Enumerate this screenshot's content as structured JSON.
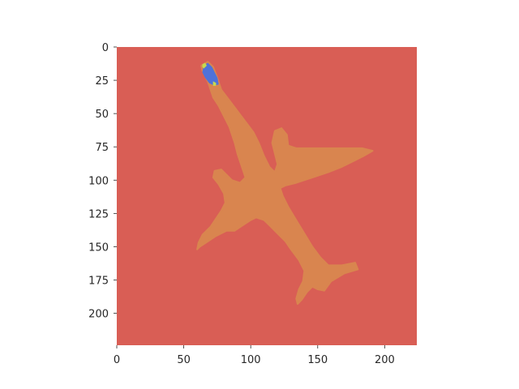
{
  "chart_data": {
    "type": "heatmap",
    "description_kind": "segmentation-mask",
    "image_size": [
      224,
      224
    ],
    "xlim": [
      0,
      224
    ],
    "ylim": [
      224,
      0
    ],
    "grid": false,
    "xticks": [
      0,
      50,
      100,
      150,
      200
    ],
    "yticks": [
      0,
      25,
      50,
      75,
      100,
      125,
      150,
      175,
      200
    ],
    "xtick_labels": [
      "0",
      "50",
      "100",
      "150",
      "200"
    ],
    "ytick_labels": [
      "0",
      "25",
      "50",
      "75",
      "100",
      "125",
      "150",
      "175",
      "200"
    ],
    "classes": [
      {
        "class": "background",
        "color": "#d95e55"
      },
      {
        "class": "airplane",
        "color": "#d9854f"
      },
      {
        "class": "nose-region",
        "color": "#4f72d9"
      },
      {
        "class": "edge",
        "color": "#c5d94f"
      }
    ],
    "regions": [
      {
        "class": "airplane",
        "points": [
          [
            63,
            14
          ],
          [
            68,
            11
          ],
          [
            72,
            15
          ],
          [
            75,
            23
          ],
          [
            78,
            32
          ],
          [
            84,
            40
          ],
          [
            90,
            48
          ],
          [
            96,
            56
          ],
          [
            102,
            64
          ],
          [
            106,
            72
          ],
          [
            110,
            82
          ],
          [
            114,
            90
          ],
          [
            118,
            94
          ],
          [
            120,
            88
          ],
          [
            118,
            80
          ],
          [
            116,
            72
          ],
          [
            118,
            63
          ],
          [
            123,
            61
          ],
          [
            127,
            66
          ],
          [
            128,
            74
          ],
          [
            134,
            76
          ],
          [
            150,
            76
          ],
          [
            170,
            76
          ],
          [
            183,
            76
          ],
          [
            191,
            78
          ],
          [
            184,
            82
          ],
          [
            176,
            86
          ],
          [
            168,
            90
          ],
          [
            158,
            94
          ],
          [
            146,
            98
          ],
          [
            134,
            102
          ],
          [
            126,
            104
          ],
          [
            122,
            106
          ],
          [
            124,
            112
          ],
          [
            128,
            120
          ],
          [
            134,
            130
          ],
          [
            140,
            140
          ],
          [
            146,
            150
          ],
          [
            152,
            158
          ],
          [
            158,
            164
          ],
          [
            168,
            164
          ],
          [
            178,
            162
          ],
          [
            180,
            167
          ],
          [
            170,
            170
          ],
          [
            160,
            176
          ],
          [
            155,
            183
          ],
          [
            150,
            182
          ],
          [
            146,
            180
          ],
          [
            142,
            184
          ],
          [
            138,
            190
          ],
          [
            135,
            193
          ],
          [
            134,
            189
          ],
          [
            136,
            182
          ],
          [
            139,
            176
          ],
          [
            140,
            168
          ],
          [
            136,
            160
          ],
          [
            130,
            152
          ],
          [
            126,
            146
          ],
          [
            120,
            140
          ],
          [
            114,
            134
          ],
          [
            110,
            130
          ],
          [
            104,
            128
          ],
          [
            100,
            130
          ],
          [
            94,
            134
          ],
          [
            88,
            138
          ],
          [
            82,
            138
          ],
          [
            74,
            142
          ],
          [
            68,
            146
          ],
          [
            62,
            150
          ],
          [
            60,
            152
          ],
          [
            61,
            147
          ],
          [
            64,
            141
          ],
          [
            70,
            135
          ],
          [
            74,
            129
          ],
          [
            78,
            123
          ],
          [
            81,
            117
          ],
          [
            80,
            110
          ],
          [
            76,
            103
          ],
          [
            72,
            98
          ],
          [
            73,
            93
          ],
          [
            78,
            92
          ],
          [
            82,
            96
          ],
          [
            86,
            100
          ],
          [
            92,
            102
          ],
          [
            96,
            98
          ],
          [
            94,
            92
          ],
          [
            92,
            86
          ],
          [
            90,
            80
          ],
          [
            88,
            72
          ],
          [
            86,
            66
          ],
          [
            84,
            60
          ],
          [
            80,
            52
          ],
          [
            76,
            44
          ],
          [
            72,
            38
          ],
          [
            70,
            32
          ],
          [
            68,
            26
          ],
          [
            66,
            22
          ],
          [
            64,
            18
          ]
        ]
      },
      {
        "class": "nose-region",
        "points": [
          [
            65,
            14
          ],
          [
            68,
            12
          ],
          [
            71,
            15
          ],
          [
            73,
            19
          ],
          [
            75,
            23
          ],
          [
            76,
            28
          ],
          [
            73,
            29
          ],
          [
            69,
            27
          ],
          [
            66,
            23
          ],
          [
            64,
            19
          ]
        ]
      },
      {
        "class": "edge",
        "points": [
          [
            64,
            13
          ],
          [
            66,
            12
          ],
          [
            67,
            14
          ],
          [
            65,
            16
          ],
          [
            64,
            15
          ]
        ]
      },
      {
        "class": "edge",
        "points": [
          [
            72,
            26
          ],
          [
            74,
            27
          ],
          [
            74,
            29
          ],
          [
            72,
            29
          ]
        ]
      }
    ]
  }
}
